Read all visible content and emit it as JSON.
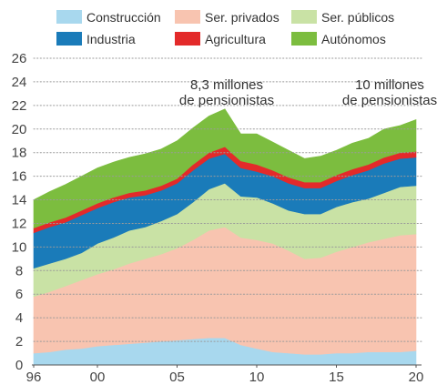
{
  "chart_data": {
    "type": "area",
    "stacked": true,
    "title": "",
    "xlabel": "",
    "ylabel": "",
    "xlim": [
      1996,
      2020
    ],
    "ylim": [
      0,
      26
    ],
    "x_ticks": [
      {
        "value": 1996,
        "label": "96"
      },
      {
        "value": 2000,
        "label": "00"
      },
      {
        "value": 2005,
        "label": "05"
      },
      {
        "value": 2010,
        "label": "10"
      },
      {
        "value": 2015,
        "label": "15"
      },
      {
        "value": 2020,
        "label": "20"
      }
    ],
    "y_ticks": [
      0,
      2,
      4,
      6,
      8,
      10,
      12,
      14,
      16,
      18,
      20,
      22,
      24,
      26
    ],
    "grid": "horizontal-dotted",
    "legend_position": "top",
    "x": [
      1996,
      1997,
      1998,
      1999,
      2000,
      2001,
      2002,
      2003,
      2004,
      2005,
      2006,
      2007,
      2008,
      2009,
      2010,
      2011,
      2012,
      2013,
      2014,
      2015,
      2016,
      2017,
      2018,
      2019,
      2020
    ],
    "series": [
      {
        "name": "Construcción",
        "color": "#a8d8ee",
        "values": [
          1.0,
          1.1,
          1.3,
          1.4,
          1.6,
          1.7,
          1.8,
          1.9,
          2.0,
          2.1,
          2.2,
          2.3,
          2.3,
          1.7,
          1.4,
          1.1,
          1.0,
          0.9,
          0.9,
          1.0,
          1.0,
          1.1,
          1.1,
          1.1,
          1.2
        ]
      },
      {
        "name": "Ser. privados",
        "color": "#f8c4b0",
        "values": [
          4.8,
          5.1,
          5.4,
          5.8,
          6.1,
          6.4,
          6.8,
          7.1,
          7.4,
          7.8,
          8.4,
          9.1,
          9.4,
          9.1,
          9.2,
          9.2,
          8.7,
          8.1,
          8.2,
          8.6,
          9.0,
          9.3,
          9.6,
          9.9,
          9.9
        ]
      },
      {
        "name": "Ser. públicos",
        "color": "#c9e2a5",
        "values": [
          2.4,
          2.4,
          2.3,
          2.3,
          2.6,
          2.7,
          2.8,
          2.7,
          2.8,
          2.9,
          3.2,
          3.5,
          3.7,
          3.5,
          3.6,
          3.4,
          3.4,
          3.8,
          3.7,
          3.8,
          3.8,
          3.7,
          3.9,
          4.1,
          4.1
        ]
      },
      {
        "name": "Industria",
        "color": "#1a7bb9",
        "values": [
          3.0,
          3.1,
          3.1,
          3.2,
          3.0,
          3.0,
          2.8,
          2.7,
          2.6,
          2.6,
          2.7,
          2.6,
          2.5,
          2.4,
          2.2,
          2.3,
          2.3,
          2.2,
          2.2,
          2.2,
          2.3,
          2.4,
          2.5,
          2.4,
          2.4
        ]
      },
      {
        "name": "Agricultura",
        "color": "#e32a2a",
        "values": [
          0.4,
          0.4,
          0.4,
          0.4,
          0.4,
          0.4,
          0.4,
          0.4,
          0.4,
          0.4,
          0.5,
          0.5,
          0.6,
          0.6,
          0.6,
          0.5,
          0.5,
          0.5,
          0.5,
          0.5,
          0.5,
          0.5,
          0.5,
          0.5,
          0.5
        ]
      },
      {
        "name": "Autónomos",
        "color": "#7cbd3f",
        "values": [
          2.4,
          2.6,
          2.8,
          2.9,
          3.0,
          3.0,
          3.0,
          3.1,
          3.1,
          3.2,
          3.1,
          3.1,
          3.2,
          2.3,
          2.6,
          2.4,
          2.3,
          2.0,
          2.2,
          2.1,
          2.2,
          2.2,
          2.4,
          2.3,
          2.7
        ]
      }
    ],
    "annotations": [
      {
        "lines": [
          "8,3 millones",
          "de pensionistas"
        ],
        "x": 2008
      },
      {
        "lines": [
          "10 millones",
          "de pensionistas"
        ],
        "x": 2019
      }
    ]
  }
}
